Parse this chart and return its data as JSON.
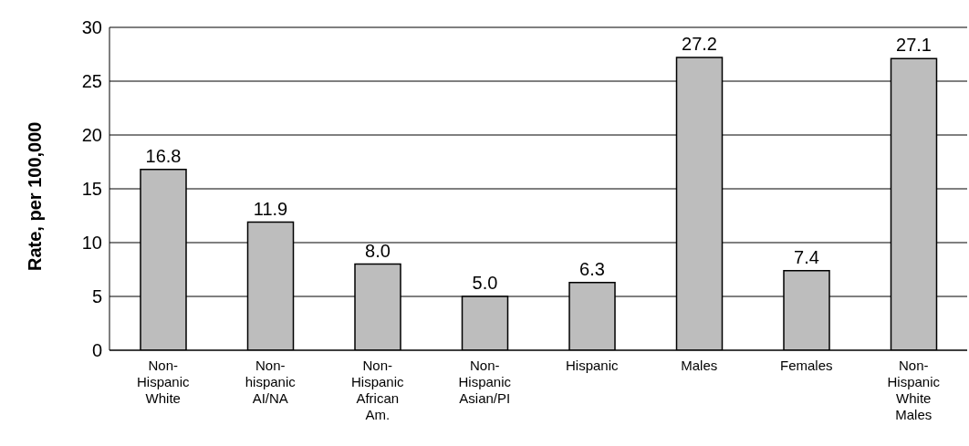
{
  "chart_data": {
    "type": "bar",
    "ylabel": "Rate, per 100,000",
    "categories": [
      "Non-\nHispanic\nWhite",
      "Non-\nhispanic\nAI/NA",
      "Non-\nHispanic\nAfrican\nAm.",
      "Non-\nHispanic\nAsian/PI",
      "Hispanic",
      "Males",
      "Females",
      "Non-\nHispanic\nWhite\nMales"
    ],
    "values": [
      16.8,
      11.9,
      8.0,
      5.0,
      6.3,
      27.2,
      7.4,
      27.1
    ],
    "value_labels": [
      "16.8",
      "11.9",
      "8.0",
      "5.0",
      "6.3",
      "27.2",
      "7.4",
      "27.1"
    ],
    "color": "#bdbdbd",
    "ylim": [
      0,
      30
    ],
    "yticks": [
      0,
      5,
      10,
      15,
      20,
      25,
      30
    ],
    "grid": "y",
    "legend": false
  }
}
